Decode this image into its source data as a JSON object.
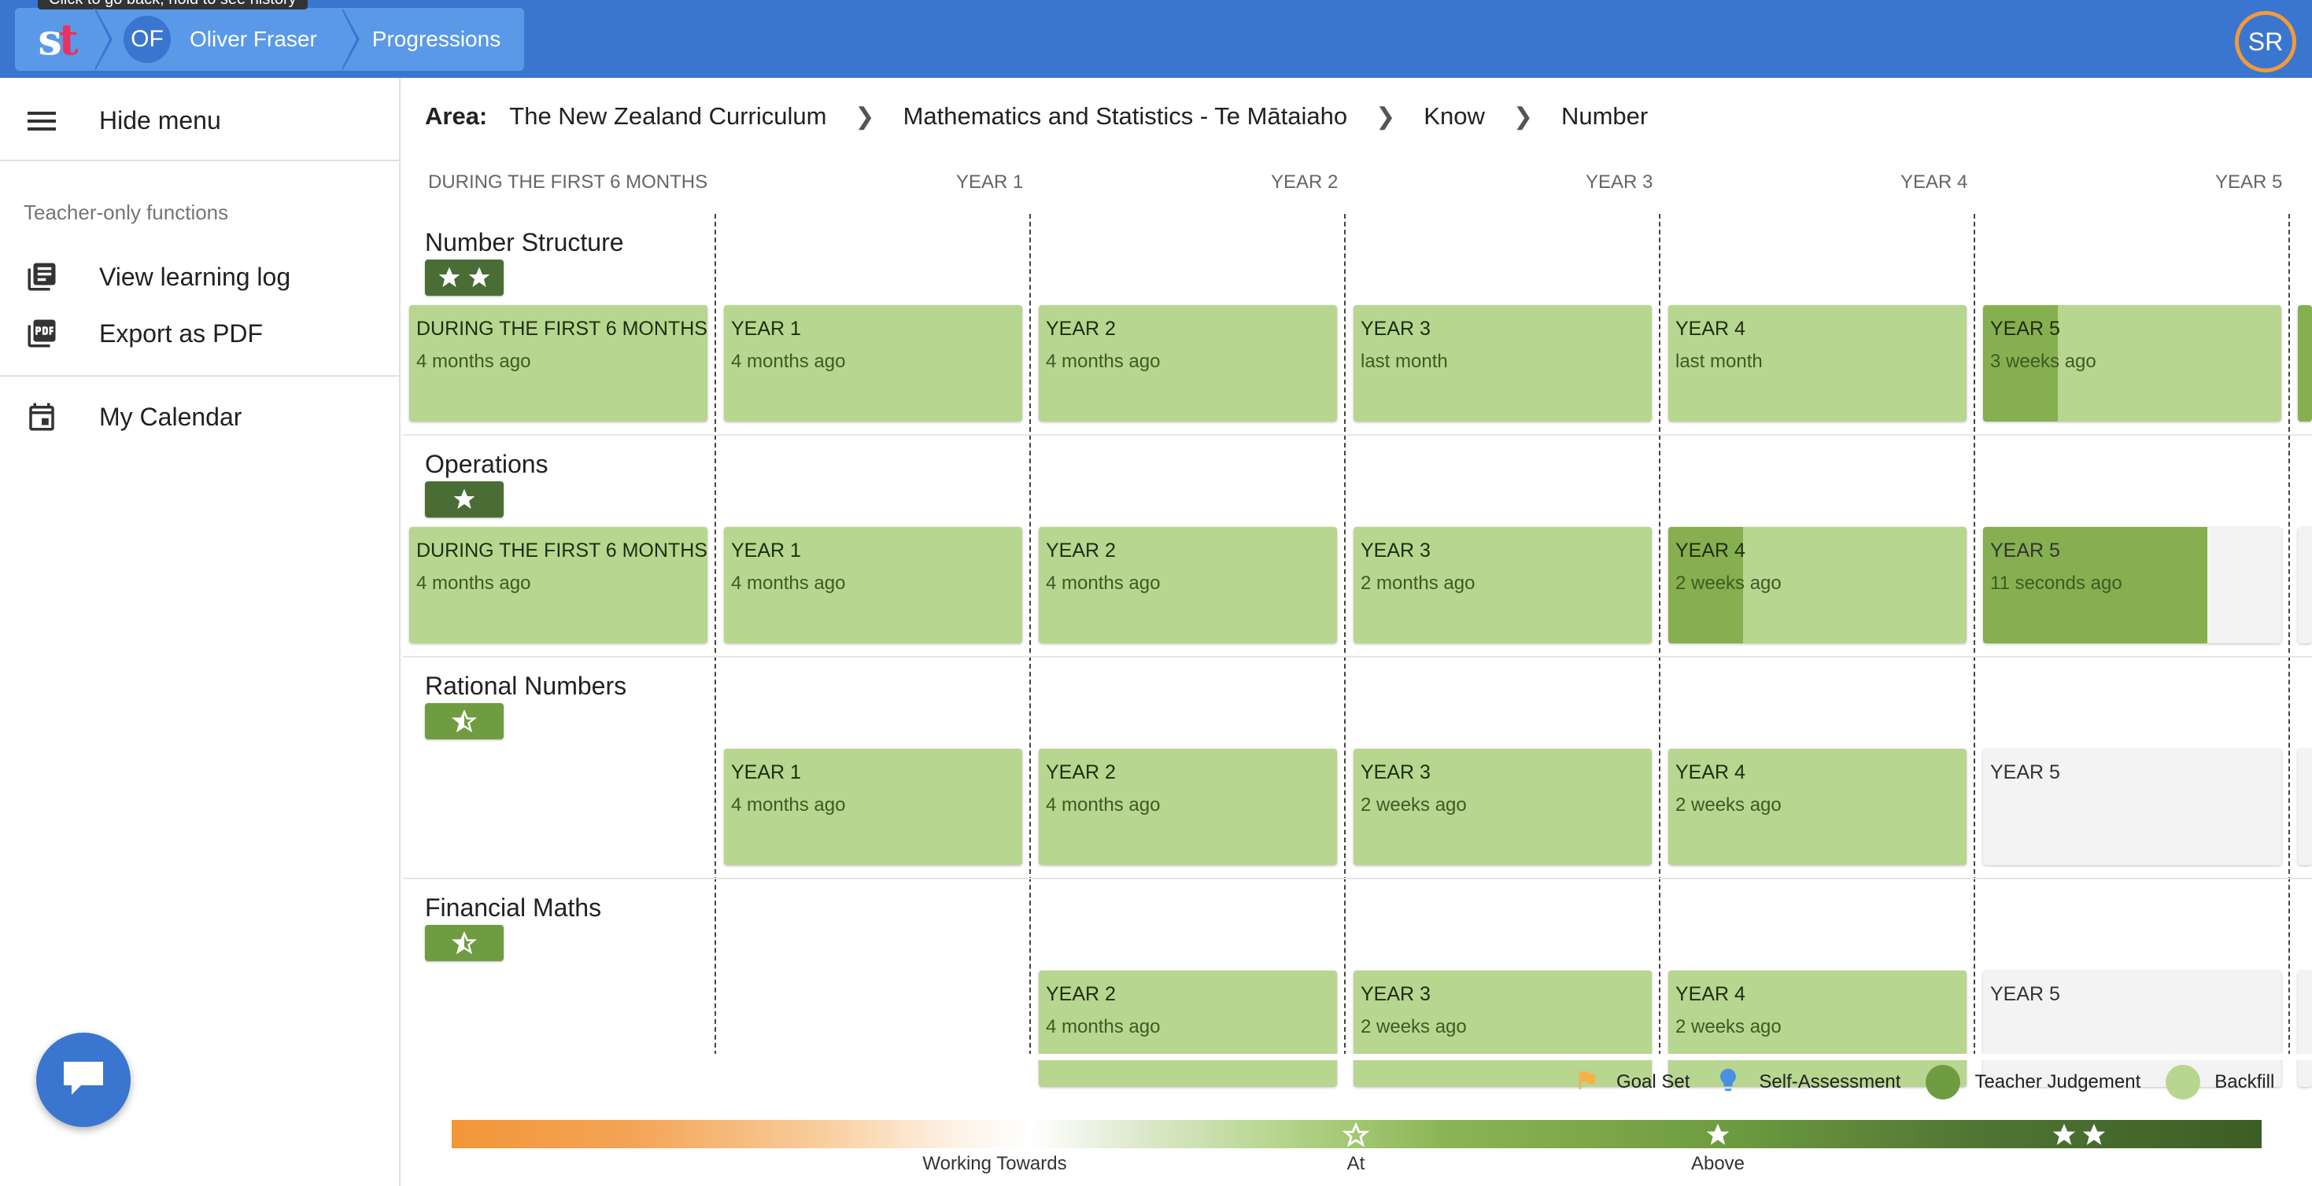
{
  "header": {
    "tooltip": "Click to go back, hold to see history",
    "logo_text": "st",
    "student_initials": "OF",
    "student_name": "Oliver Fraser",
    "page": "Progressions",
    "user_initials": "SR"
  },
  "sidebar": {
    "hide_menu": "Hide menu",
    "section_label": "Teacher-only functions",
    "items": [
      {
        "label": "View learning log",
        "icon": "list-icon"
      },
      {
        "label": "Export as PDF",
        "icon": "pdf-icon"
      },
      {
        "label": "My Calendar",
        "icon": "calendar-icon"
      }
    ]
  },
  "area": {
    "label": "Area:",
    "path": [
      "The New Zealand Curriculum",
      "Mathematics and Statistics - Te Mātaiaho",
      "Know",
      "Number"
    ]
  },
  "columns": [
    "DURING THE FIRST 6 MONTHS",
    "YEAR 1",
    "YEAR 2",
    "YEAR 3",
    "YEAR 4",
    "YEAR 5"
  ],
  "rows": [
    {
      "title": "Number Structure",
      "badge": "two-stars",
      "cards": [
        {
          "label": "DURING THE FIRST 6 MONTHS",
          "time": "4 months ago"
        },
        {
          "label": "YEAR 1",
          "time": "4 months ago"
        },
        {
          "label": "YEAR 2",
          "time": "4 months ago"
        },
        {
          "label": "YEAR 3",
          "time": "last month"
        },
        {
          "label": "YEAR 4",
          "time": "last month"
        },
        {
          "label": "YEAR 5",
          "time": "3 weeks ago"
        }
      ]
    },
    {
      "title": "Operations",
      "badge": "one-star",
      "cards": [
        {
          "label": "DURING THE FIRST 6 MONTHS",
          "time": "4 months ago"
        },
        {
          "label": "YEAR 1",
          "time": "4 months ago"
        },
        {
          "label": "YEAR 2",
          "time": "4 months ago"
        },
        {
          "label": "YEAR 3",
          "time": "2 months ago"
        },
        {
          "label": "YEAR 4",
          "time": "2 weeks ago"
        },
        {
          "label": "YEAR 5",
          "time": "11 seconds ago"
        }
      ]
    },
    {
      "title": "Rational Numbers",
      "badge": "outline-star",
      "cards": [
        {
          "label": "YEAR 1",
          "time": "4 months ago"
        },
        {
          "label": "YEAR 2",
          "time": "4 months ago"
        },
        {
          "label": "YEAR 3",
          "time": "2 weeks ago"
        },
        {
          "label": "YEAR 4",
          "time": "2 weeks ago"
        },
        {
          "label": "YEAR 5",
          "time": ""
        }
      ]
    },
    {
      "title": "Financial Maths",
      "badge": "outline-star",
      "cards": [
        {
          "label": "YEAR 2",
          "time": "4 months ago"
        },
        {
          "label": "YEAR 3",
          "time": "2 weeks ago"
        },
        {
          "label": "YEAR 4",
          "time": "2 weeks ago"
        },
        {
          "label": "YEAR 5",
          "time": ""
        }
      ]
    }
  ],
  "legend": {
    "goal_set": "Goal Set",
    "self_assessment": "Self-Assessment",
    "teacher_judgement": "Teacher Judgement",
    "backfill": "Backfill"
  },
  "scale": {
    "working_towards": "Working Towards",
    "at": "At",
    "above": "Above"
  },
  "colors": {
    "header_blue": "#3a76cf",
    "backfill_green": "#b7d68f",
    "teacher_judgement_green": "#86b04f",
    "dark_green": "#4a6d35",
    "goal_orange": "#f6b24a"
  }
}
